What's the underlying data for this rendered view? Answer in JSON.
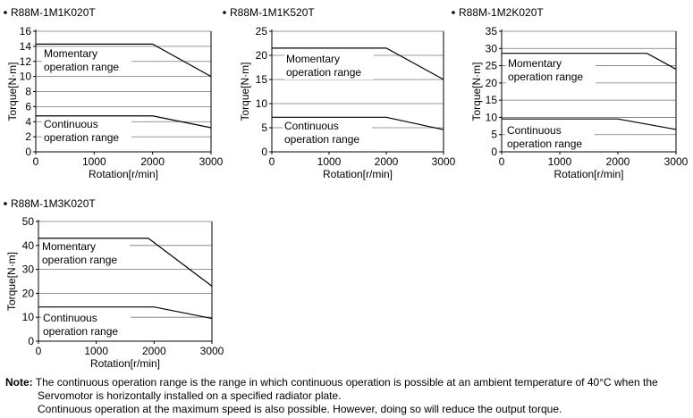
{
  "chart_data": [
    {
      "type": "line",
      "title": "R88M-1M1K020T",
      "xlabel": "Rotation[r/min]",
      "ylabel": "Torque[N·m]",
      "xlim": [
        0,
        3000
      ],
      "ylim": [
        0,
        16
      ],
      "x_ticks": [
        0,
        1000,
        2000,
        3000
      ],
      "y_ticks": [
        0,
        2,
        4,
        6,
        8,
        10,
        12,
        14,
        16
      ],
      "grid": true,
      "series": [
        {
          "name": "Momentary operation range",
          "x": [
            0,
            2000,
            3000
          ],
          "y": [
            14.3,
            14.3,
            10.0
          ]
        },
        {
          "name": "Continuous operation range",
          "x": [
            0,
            2000,
            3000
          ],
          "y": [
            4.77,
            4.77,
            3.2
          ]
        }
      ]
    },
    {
      "type": "line",
      "title": "R88M-1M1K520T",
      "xlabel": "Rotation[r/min]",
      "ylabel": "Torque[N·m]",
      "xlim": [
        0,
        3000
      ],
      "ylim": [
        0,
        25
      ],
      "x_ticks": [
        0,
        1000,
        2000,
        3000
      ],
      "y_ticks": [
        0,
        5,
        10,
        15,
        20,
        25
      ],
      "grid": true,
      "series": [
        {
          "name": "Momentary operation range",
          "x": [
            0,
            2000,
            3000
          ],
          "y": [
            21.5,
            21.5,
            15.0
          ]
        },
        {
          "name": "Continuous operation range",
          "x": [
            0,
            2000,
            3000
          ],
          "y": [
            7.16,
            7.16,
            4.6
          ]
        }
      ]
    },
    {
      "type": "line",
      "title": "R88M-1M2K020T",
      "xlabel": "Rotation[r/min]",
      "ylabel": "Torque[N·m]",
      "xlim": [
        0,
        3000
      ],
      "ylim": [
        0,
        35
      ],
      "x_ticks": [
        0,
        1000,
        2000,
        3000
      ],
      "y_ticks": [
        0,
        5,
        10,
        15,
        20,
        25,
        30,
        35
      ],
      "grid": true,
      "series": [
        {
          "name": "Momentary operation range",
          "x": [
            0,
            2500,
            3000
          ],
          "y": [
            28.6,
            28.6,
            24.0
          ]
        },
        {
          "name": "Continuous operation range",
          "x": [
            0,
            2000,
            3000
          ],
          "y": [
            9.55,
            9.55,
            6.5
          ]
        }
      ]
    },
    {
      "type": "line",
      "title": "R88M-1M3K020T",
      "xlabel": "Rotation[r/min]",
      "ylabel": "Torque[N·m]",
      "xlim": [
        0,
        3000
      ],
      "ylim": [
        0,
        50
      ],
      "x_ticks": [
        0,
        1000,
        2000,
        3000
      ],
      "y_ticks": [
        0,
        10,
        20,
        30,
        40,
        50
      ],
      "grid": true,
      "series": [
        {
          "name": "Momentary operation range",
          "x": [
            0,
            1900,
            3000
          ],
          "y": [
            43.0,
            43.0,
            23.0
          ]
        },
        {
          "name": "Continuous operation range",
          "x": [
            0,
            2000,
            3000
          ],
          "y": [
            14.3,
            14.3,
            9.5
          ]
        }
      ]
    }
  ],
  "labels": {
    "momentary_line1": "Momentary",
    "momentary_line2": "operation range",
    "continuous_line1": "Continuous",
    "continuous_line2": "operation range"
  },
  "note": {
    "label": "Note:",
    "line1": "The continuous operation range is the range in which continuous operation is possible at an ambient temperature of 40°C when the",
    "line2": "Servomotor is horizontally installed on a specified radiator plate.",
    "line3": "Continuous operation at the maximum speed is also possible. However, doing so will reduce the output torque."
  }
}
